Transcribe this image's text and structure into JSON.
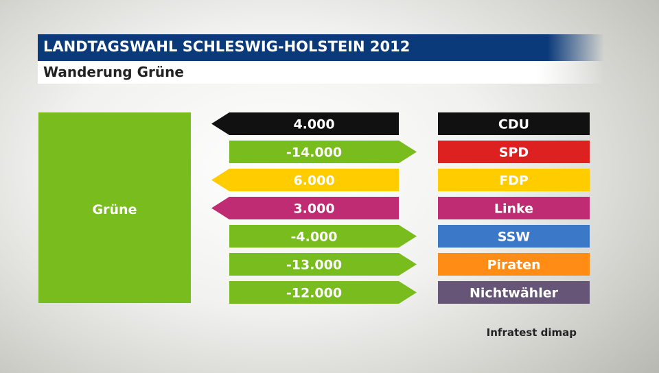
{
  "header": {
    "title": "LANDTAGSWAHL SCHLESWIG-HOLSTEIN 2012",
    "subtitle": "Wanderung Grüne"
  },
  "source": "Infratest dimap",
  "chart_data": {
    "type": "bar",
    "subject": {
      "label": "Grüne",
      "color": "#78bc1e"
    },
    "rows": [
      {
        "party": "CDU",
        "value": "4.000",
        "direction": "in",
        "party_color": "#111111",
        "arrow_color": "#111111"
      },
      {
        "party": "SPD",
        "value": "-14.000",
        "direction": "out",
        "party_color": "#dd2020",
        "arrow_color": "#78bc1e"
      },
      {
        "party": "FDP",
        "value": "6.000",
        "direction": "in",
        "party_color": "#ffcc00",
        "arrow_color": "#ffcc00"
      },
      {
        "party": "Linke",
        "value": "3.000",
        "direction": "in",
        "party_color": "#bf2c73",
        "arrow_color": "#bf2c73"
      },
      {
        "party": "SSW",
        "value": "-4.000",
        "direction": "out",
        "party_color": "#3b78c8",
        "arrow_color": "#78bc1e"
      },
      {
        "party": "Piraten",
        "value": "-13.000",
        "direction": "out",
        "party_color": "#ff8c14",
        "arrow_color": "#78bc1e"
      },
      {
        "party": "Nichtwähler",
        "value": "-12.000",
        "direction": "out",
        "party_color": "#665577",
        "arrow_color": "#78bc1e"
      }
    ]
  }
}
